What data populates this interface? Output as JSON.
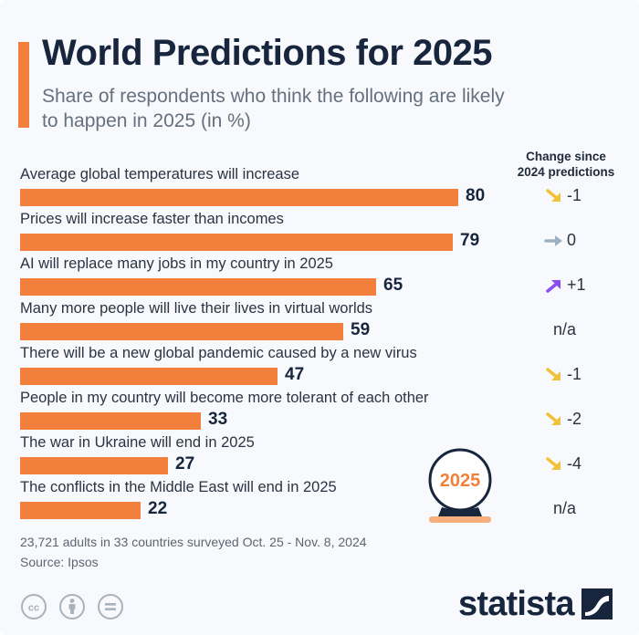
{
  "title": "World Predictions for 2025",
  "subtitle": "Share of respondents who think the following are likely to happen in 2025 (in %)",
  "change_header_line1": "Change since",
  "change_header_line2": "2024 predictions",
  "badge_text": "2025",
  "note": "23,721 adults in 33 countries surveyed Oct. 25 - Nov. 8, 2024",
  "source": "Source: Ipsos",
  "brand": "statista",
  "license_icons": [
    "cc-icon",
    "attribution-icon",
    "no-derivatives-icon"
  ],
  "colors": {
    "bar": "#f2803c",
    "title": "#17253d",
    "arrow_down": "#f0c23a",
    "arrow_flat": "#9fb0c0",
    "arrow_up": "#8a4ef0"
  },
  "chart_data": {
    "type": "bar",
    "orientation": "horizontal",
    "categories": [
      "Average global temperatures will increase",
      "Prices will increase faster than incomes",
      "AI will replace many jobs in my country in 2025",
      "Many more people will live their lives in virtual worlds",
      "There will be a new global pandemic caused by a new virus",
      "People in my country will become more tolerant of each other",
      "The war in Ukraine will end in 2025",
      "The conflicts in the Middle East will end in 2025"
    ],
    "values": [
      80,
      79,
      65,
      59,
      47,
      33,
      27,
      22
    ],
    "value_labels": [
      "80",
      "79",
      "65",
      "59",
      "47",
      "33",
      "27",
      "22"
    ],
    "change_since_2024": [
      "-1",
      "0",
      "+1",
      "n/a",
      "-1",
      "-2",
      "-4",
      "n/a"
    ],
    "change_direction": [
      "down",
      "flat",
      "up",
      "none",
      "down",
      "down",
      "down",
      "none"
    ],
    "xlim": [
      0,
      100
    ],
    "grid": false,
    "legend": "none"
  }
}
